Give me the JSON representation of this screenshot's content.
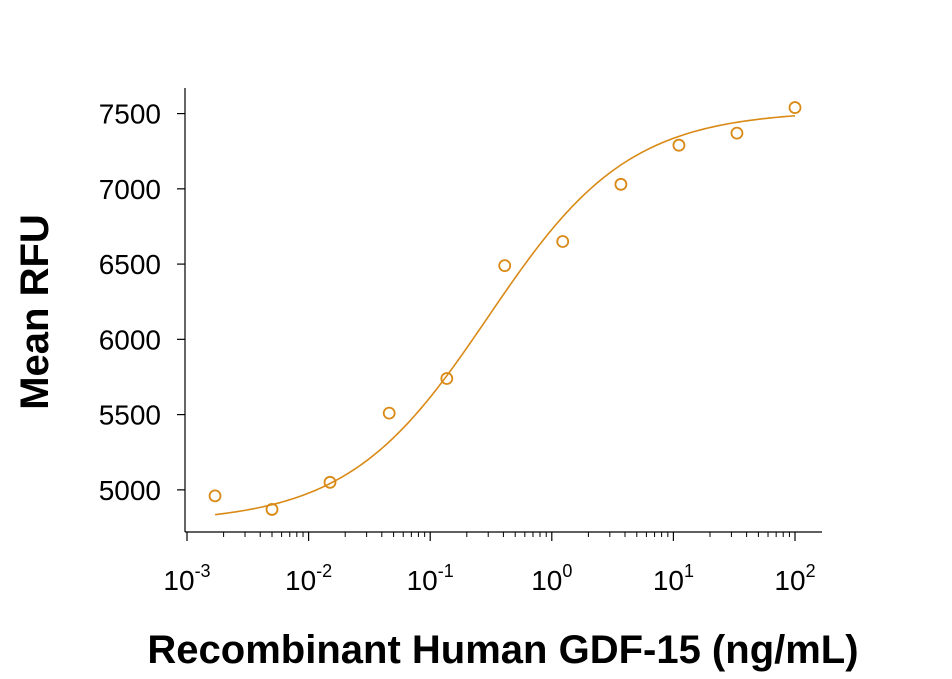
{
  "chart_data": {
    "type": "scatter",
    "title": "",
    "xlabel": "Recombinant Human GDF-15 (ng/mL)",
    "ylabel": "Mean RFU",
    "x_scale": "log",
    "xlim": [
      0.001,
      100
    ],
    "ylim": [
      4720,
      7670
    ],
    "x_ticks": [
      {
        "value": 0.001,
        "base": "10",
        "exp": "-3"
      },
      {
        "value": 0.01,
        "base": "10",
        "exp": "-2"
      },
      {
        "value": 0.1,
        "base": "10",
        "exp": "-1"
      },
      {
        "value": 1,
        "base": "10",
        "exp": "0"
      },
      {
        "value": 10,
        "base": "10",
        "exp": "1"
      },
      {
        "value": 100,
        "base": "10",
        "exp": "2"
      }
    ],
    "y_ticks": [
      {
        "value": 5000,
        "label": "5000"
      },
      {
        "value": 5500,
        "label": "5500"
      },
      {
        "value": 6000,
        "label": "6000"
      },
      {
        "value": 6500,
        "label": "6500"
      },
      {
        "value": 7000,
        "label": "7000"
      },
      {
        "value": 7500,
        "label": "7500"
      }
    ],
    "grid": false,
    "legend": "none",
    "series": [
      {
        "color": "#D98A16",
        "marker": "open-circle",
        "x": [
          0.0017,
          0.005,
          0.015,
          0.046,
          0.137,
          0.41,
          1.23,
          3.7,
          11.1,
          33.3,
          100
        ],
        "y": [
          4960,
          4870,
          5050,
          5510,
          5740,
          6490,
          6650,
          7030,
          7290,
          7370,
          7540
        ]
      }
    ],
    "fit_curve": {
      "model": "4PL",
      "color": "#D98A16",
      "bottom": 4780,
      "top": 7520,
      "ec50": 0.3,
      "hill": 0.75,
      "x_range": [
        0.0017,
        100
      ]
    }
  }
}
